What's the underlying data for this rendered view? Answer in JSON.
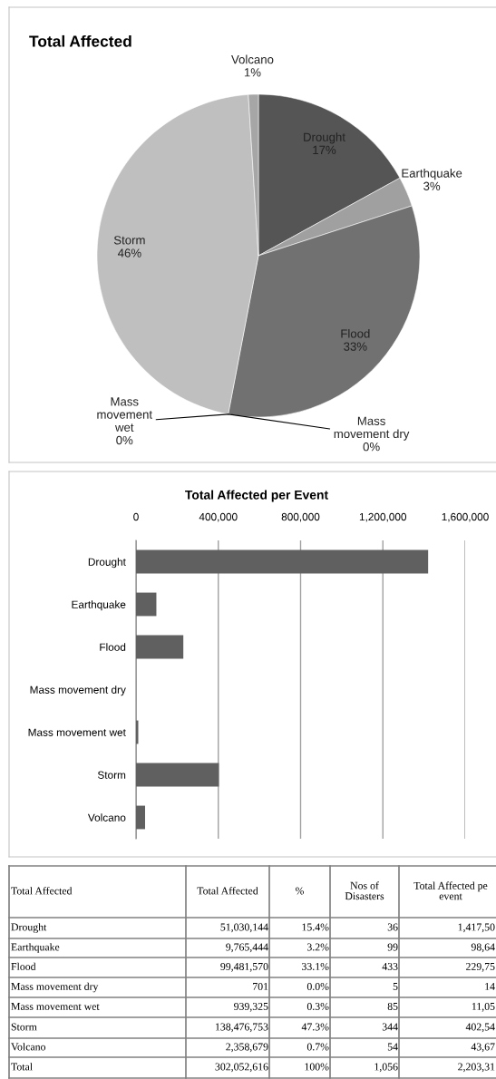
{
  "chart_data": [
    {
      "type": "pie",
      "title": "Total Affected",
      "categories": [
        "Drought",
        "Earthquake",
        "Flood",
        "Mass\nmovement dry",
        "Mass\nmovement\nwet",
        "Storm",
        "Volcano"
      ],
      "values": [
        17,
        3,
        33,
        0,
        0,
        46,
        1
      ],
      "value_labels": [
        "17%",
        "3%",
        "33%",
        "0%",
        "0%",
        "46%",
        "1%"
      ],
      "colors": [
        "#555555",
        "#a0a0a0",
        "#717171",
        "#8c8c8c",
        "#999999",
        "#bfbfbf",
        "#a6a6a6"
      ]
    },
    {
      "type": "bar",
      "orientation": "horizontal",
      "title": "Total Affected per Event",
      "categories": [
        "Drought",
        "Earthquake",
        "Flood",
        "Mass movement dry",
        "Mass movement wet",
        "Storm",
        "Volcano"
      ],
      "values": [
        1420000,
        99000,
        230000,
        140,
        11000,
        403000,
        44000
      ],
      "color": "#606060",
      "xlim": [
        0,
        1600000
      ],
      "xticks": [
        0,
        {
          "value": 400000,
          "label": "400,000"
        },
        {
          "value": 800000,
          "label": "800,000"
        },
        {
          "value": 1200000,
          "label": "1,200,000"
        },
        {
          "value": 1600000,
          "label": "1,600,000"
        }
      ],
      "grid": "x"
    },
    {
      "type": "other",
      "categories": [
        "Total Affected",
        "Total Affected",
        "%",
        "Nos of\nDisasters",
        "Total Affected pe\nevent"
      ],
      "y_categories": [
        "Drought",
        "Earthquake",
        "Flood",
        "Mass movement dry",
        "Mass movement wet",
        "Storm",
        "Volcano",
        "Total"
      ],
      "cell_labels": [
        [
          "51,030,144",
          "15.4%",
          "36",
          "1,417,50"
        ],
        [
          "9,765,444",
          "3.2%",
          "99",
          "98,64"
        ],
        [
          "99,481,570",
          "33.1%",
          "433",
          "229,75"
        ],
        [
          "701",
          "0.0%",
          "5",
          "14"
        ],
        [
          "939,325",
          "0.3%",
          "85",
          "11,05"
        ],
        [
          "138,476,753",
          "47.3%",
          "344",
          "402,54"
        ],
        [
          "2,358,679",
          "0.7%",
          "54",
          "43,67"
        ],
        [
          "302,052,616",
          "100%",
          "1,056",
          "2,203,31"
        ]
      ]
    }
  ]
}
